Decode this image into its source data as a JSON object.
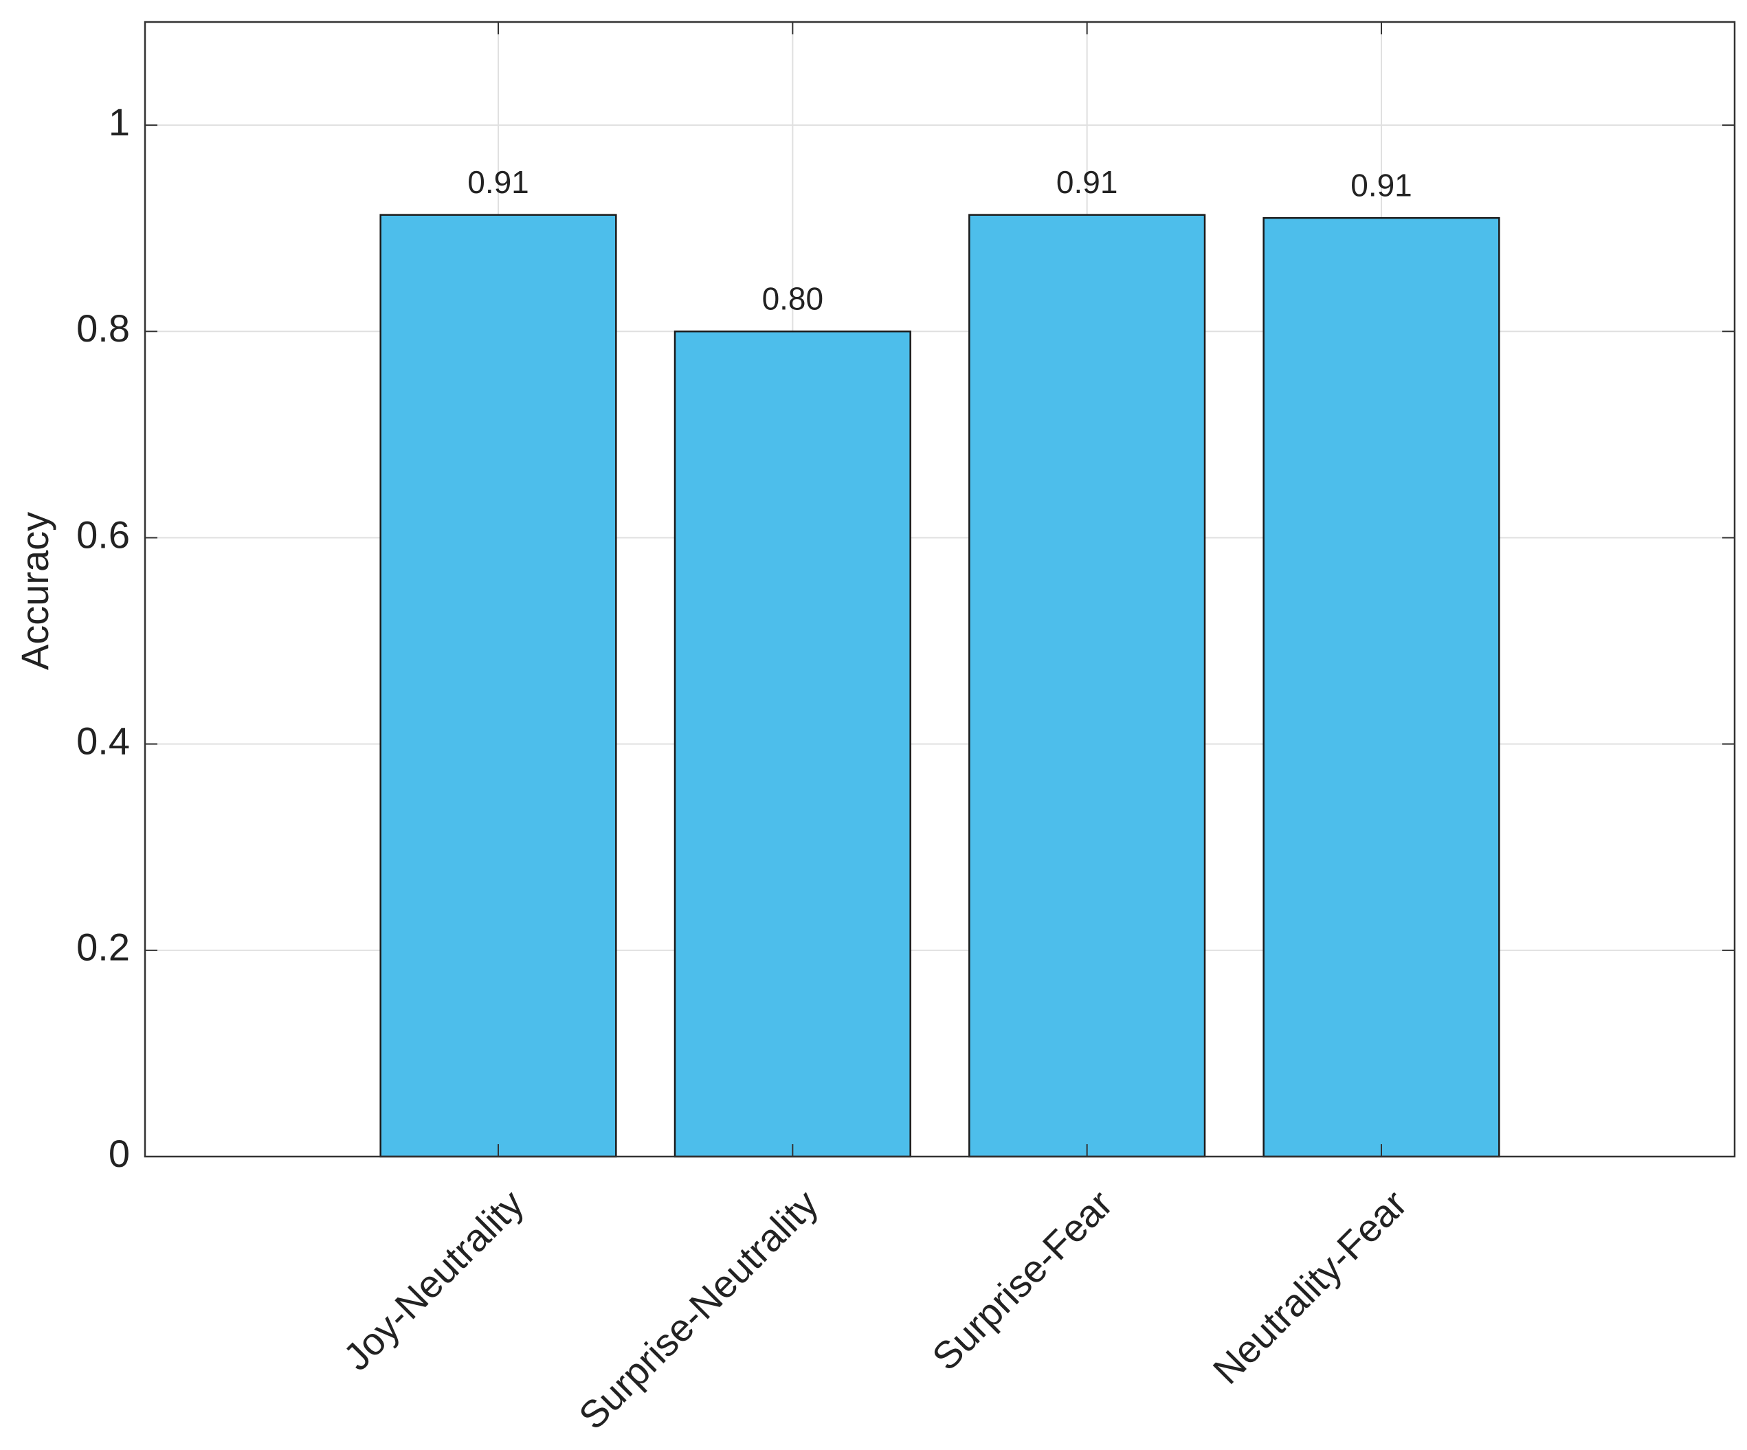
{
  "chart_data": {
    "type": "bar",
    "y_label": "Accuracy",
    "categories": [
      "Joy-Neutrality",
      "Surprise-Neutrality",
      "Surprise-Fear",
      "Neutrality-Fear"
    ],
    "values": [
      0.913,
      0.8,
      0.913,
      0.91
    ],
    "value_labels": [
      "0.91",
      "0.80",
      "0.91",
      "0.91"
    ],
    "color": "#4dbeeb",
    "ylim": [
      0,
      1.1
    ],
    "yticks": [
      0,
      0.2,
      0.4,
      0.6,
      0.8,
      1
    ],
    "grid": true
  }
}
